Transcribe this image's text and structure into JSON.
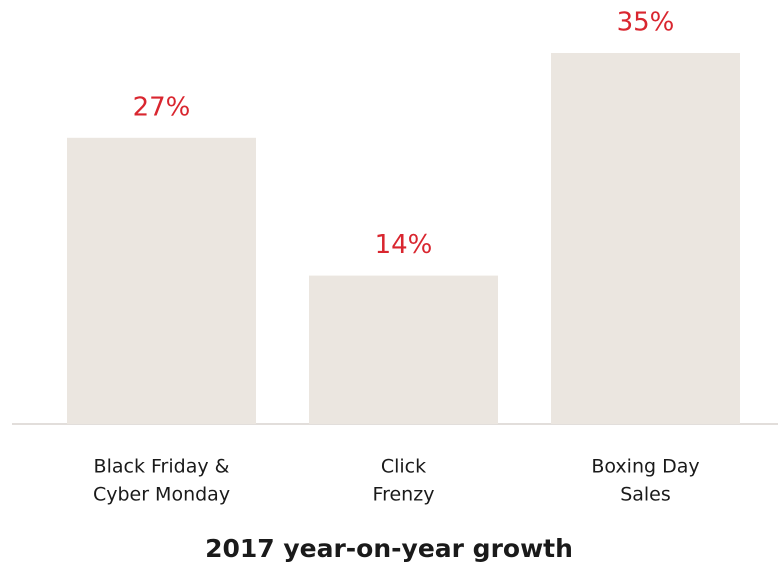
{
  "chart_data": {
    "type": "bar",
    "title": "2017 year-on-year growth",
    "categories": [
      [
        "Black Friday &",
        "Cyber Monday"
      ],
      [
        "Click",
        "Frenzy"
      ],
      [
        "Boxing Day",
        "Sales"
      ]
    ],
    "values": [
      27,
      14,
      35
    ],
    "value_labels": [
      "27%",
      "14%",
      "35%"
    ],
    "color": "#ebe6e0",
    "label_color": "#d9262f"
  }
}
